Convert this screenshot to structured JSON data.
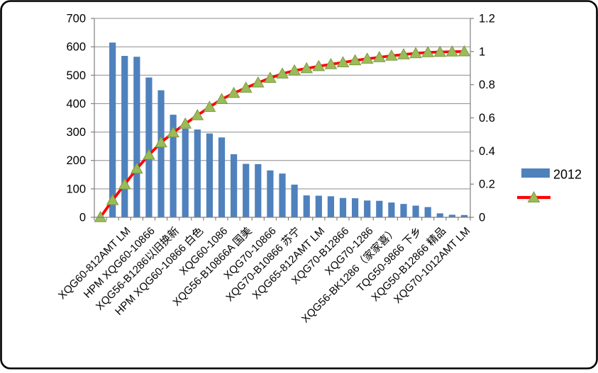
{
  "chart_data": {
    "type": "bar",
    "subtype": "pareto-combo-bar-line",
    "title": "",
    "xlabel": "",
    "ylabel": "",
    "left_axis": {
      "min": 0,
      "max": 700,
      "step": 100,
      "tick_labels": [
        "0",
        "100",
        "200",
        "300",
        "400",
        "500",
        "600",
        "700"
      ]
    },
    "right_axis": {
      "min": 0,
      "max": 1.2,
      "step": 0.2,
      "tick_labels": [
        "0",
        "0.2",
        "0.4",
        "0.6",
        "0.8",
        "1",
        "1.2"
      ]
    },
    "n_categories": 31,
    "leading_blank_category": true,
    "x_tick_labels_shown": [
      "XQG60-812AMT LM",
      "HPM XQG60-10866",
      "XQG56-B1286以旧换新",
      "HPM XQG60-10866 白色",
      "XQG60-1086",
      "XQG56-B10866A 国美",
      "XQG70-10866",
      "XQG70-B10866 苏宁",
      "XQG65-812AMT LM",
      "XQG70-B12866",
      "XQG70-1286",
      "XQG56-BK1286（家家喜）",
      "TQG50-9866 下乡",
      "XQG50-B12866 精品",
      "XQG70-1012AMT LM"
    ],
    "x_label_interval": 2,
    "x_label_first_category_index": 2,
    "series": [
      {
        "name": "2012",
        "type": "bar",
        "axis": "left",
        "color": "#4F81BD",
        "values": [
          615,
          568,
          565,
          492,
          447,
          361,
          312,
          309,
          295,
          281,
          222,
          188,
          187,
          165,
          154,
          115,
          77,
          76,
          74,
          68,
          67,
          59,
          58,
          52,
          47,
          41,
          36,
          14,
          9,
          8
        ]
      },
      {
        "name": "",
        "type": "line",
        "axis": "right",
        "color": "#FE0000",
        "marker": "triangle",
        "marker_color": "#9BBB59",
        "marker_border": "#7E9A44",
        "values": [
          0,
          0.103,
          0.198,
          0.293,
          0.376,
          0.451,
          0.511,
          0.564,
          0.615,
          0.665,
          0.712,
          0.749,
          0.781,
          0.812,
          0.84,
          0.866,
          0.885,
          0.898,
          0.911,
          0.923,
          0.934,
          0.946,
          0.956,
          0.965,
          0.974,
          0.982,
          0.989,
          0.995,
          0.997,
          0.999,
          1.0
        ]
      }
    ],
    "legend_position": "right",
    "legend": [
      {
        "label": "2012",
        "swatch": "bar"
      },
      {
        "label": "",
        "swatch": "line-triangle"
      }
    ],
    "grid": "horizontal",
    "gridline_color": "#8C8C8C",
    "axis_color": "#808080",
    "frame_border_color": "#000000"
  }
}
